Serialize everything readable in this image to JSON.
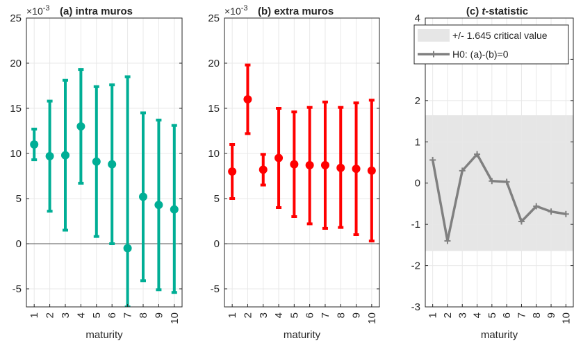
{
  "colors": {
    "a": "#00AE95",
    "b": "#FF0000",
    "c": "#808080",
    "band": "#E6E6E6",
    "grid": "#E8E8E8",
    "axis": "#262626"
  },
  "chart_data": [
    {
      "type": "scatter",
      "panel": "a",
      "title": "(a) intra muros",
      "exponent_label": "×10",
      "exponent_power": "-3",
      "xlabel": "maturity",
      "ylabel": "",
      "categories": [
        "1",
        "2",
        "3",
        "4",
        "5",
        "6",
        "7",
        "8",
        "9",
        "10"
      ],
      "xlim": [
        0.5,
        10.5
      ],
      "ylim": [
        -7,
        25
      ],
      "yticks": [
        -5,
        0,
        5,
        10,
        15,
        20,
        25
      ],
      "ytick_labels": [
        "-5",
        "0",
        "5",
        "10",
        "15",
        "20",
        "25"
      ],
      "grid": true,
      "series": [
        {
          "values": [
            11.0,
            9.7,
            9.8,
            13.0,
            9.1,
            8.8,
            -0.5,
            5.2,
            4.3,
            3.8
          ],
          "lower": [
            9.3,
            3.6,
            1.5,
            6.7,
            0.8,
            0.0,
            -7.0,
            -4.1,
            -5.1,
            -5.4
          ],
          "upper": [
            12.7,
            15.8,
            18.1,
            19.3,
            17.4,
            17.6,
            18.5,
            14.5,
            13.7,
            13.1
          ]
        }
      ]
    },
    {
      "type": "scatter",
      "panel": "b",
      "title": "(b) extra muros",
      "exponent_label": "×10",
      "exponent_power": "-3",
      "xlabel": "maturity",
      "ylabel": "",
      "categories": [
        "1",
        "2",
        "3",
        "4",
        "5",
        "6",
        "7",
        "8",
        "9",
        "10"
      ],
      "xlim": [
        0.5,
        10.5
      ],
      "ylim": [
        -7,
        25
      ],
      "yticks": [
        -5,
        0,
        5,
        10,
        15,
        20,
        25
      ],
      "ytick_labels": [
        "-5",
        "0",
        "5",
        "10",
        "15",
        "20",
        "25"
      ],
      "grid": true,
      "series": [
        {
          "values": [
            8.0,
            16.0,
            8.2,
            9.5,
            8.8,
            8.7,
            8.7,
            8.4,
            8.3,
            8.1
          ],
          "lower": [
            5.0,
            12.2,
            6.5,
            4.0,
            3.0,
            2.2,
            1.7,
            1.8,
            1.0,
            0.3
          ],
          "upper": [
            11.0,
            19.8,
            9.9,
            15.0,
            14.6,
            15.1,
            15.7,
            15.1,
            15.6,
            15.9
          ]
        }
      ]
    },
    {
      "type": "line",
      "panel": "c",
      "title_prefix": "(c) ",
      "title_italic": "t",
      "title_suffix": "-statistic",
      "xlabel": "maturity",
      "ylabel": "",
      "categories": [
        "1",
        "2",
        "3",
        "4",
        "5",
        "6",
        "7",
        "8",
        "9",
        "10"
      ],
      "xlim": [
        0.5,
        10.5
      ],
      "ylim": [
        -3,
        4
      ],
      "yticks": [
        -3,
        -2,
        -1,
        0,
        1,
        2,
        3,
        4
      ],
      "ytick_labels": [
        "-3",
        "-2",
        "-1",
        "0",
        "1",
        "2",
        "3",
        "4"
      ],
      "grid": true,
      "critical_value": 1.645,
      "legend": [
        "+/- 1.645 critical value",
        "H0: (a)-(b)=0"
      ],
      "legend_position": "top",
      "series": [
        {
          "name": "H0: (a)-(b)=0",
          "values": [
            0.56,
            -1.4,
            0.3,
            0.7,
            0.05,
            0.03,
            -0.93,
            -0.56,
            -0.69,
            -0.75
          ]
        }
      ]
    }
  ]
}
